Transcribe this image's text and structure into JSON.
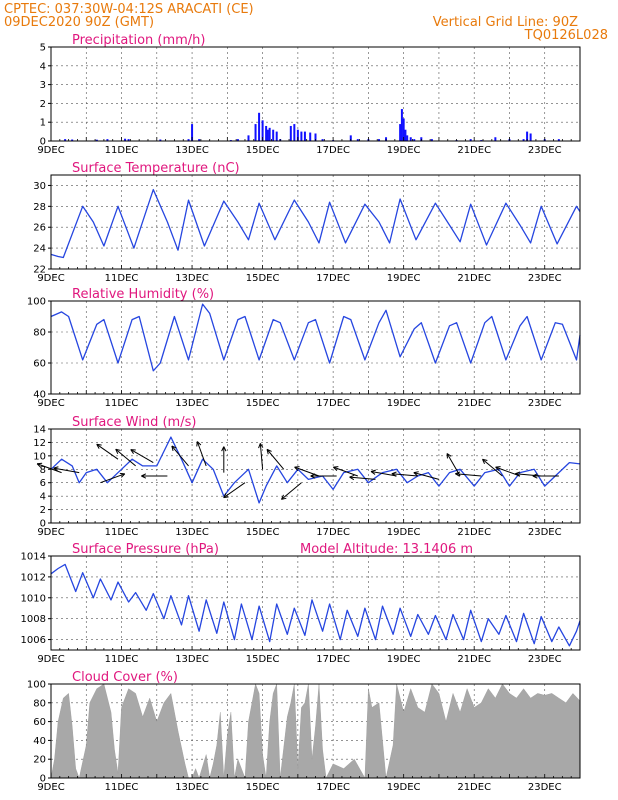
{
  "header": {
    "location": "CPTEC:   037:30W-04:12S   ARACATI (CE)",
    "run": "09DEC2020 90Z (GMT)",
    "grid_note": "Vertical Grid Line: 90Z",
    "code": "TQ0126L028"
  },
  "colors": {
    "header": "#e87a0c",
    "title": "#e0177e",
    "line": "#2646e0",
    "bar": "#1010ff",
    "cloud": "#a8a8a8"
  },
  "x_axis": {
    "start_day": 9,
    "end_day": 24,
    "labels": [
      {
        "day": 9,
        "text": "9DEC"
      },
      {
        "day": 11,
        "text": "11DEC"
      },
      {
        "day": 13,
        "text": "13DEC"
      },
      {
        "day": 15,
        "text": "15DEC"
      },
      {
        "day": 17,
        "text": "17DEC"
      },
      {
        "day": 19,
        "text": "19DEC"
      },
      {
        "day": 21,
        "text": "21DEC"
      },
      {
        "day": 23,
        "text": "23DEC"
      }
    ]
  },
  "chart_data": [
    {
      "type": "bar",
      "title": "Precipitation (mm/h)",
      "ylim": [
        0,
        5
      ],
      "yticks": [
        "0",
        "1",
        "2",
        "3",
        "4",
        "5"
      ],
      "x": [
        9.4,
        9.6,
        10.3,
        10.6,
        11.1,
        11.2,
        12.1,
        12.9,
        13.0,
        13.2,
        14.1,
        14.3,
        14.6,
        14.8,
        14.9,
        15.0,
        15.1,
        15.15,
        15.2,
        15.3,
        15.4,
        15.5,
        15.8,
        15.9,
        16.0,
        16.1,
        16.2,
        16.35,
        16.5,
        16.7,
        17.0,
        17.5,
        17.7,
        18.0,
        18.3,
        18.5,
        18.9,
        18.95,
        19.0,
        19.05,
        19.1,
        19.2,
        19.3,
        19.5,
        19.8,
        20.5,
        20.9,
        21.2,
        21.6,
        22.0,
        22.4,
        22.5,
        22.6,
        23.0,
        23.4
      ],
      "values": [
        0.1,
        0.08,
        0.07,
        0.1,
        0.12,
        0.1,
        0.08,
        0.1,
        0.9,
        0.1,
        0.05,
        0.1,
        0.3,
        0.9,
        1.5,
        1.1,
        0.8,
        0.6,
        0.7,
        0.6,
        0.5,
        0.1,
        0.8,
        0.9,
        0.6,
        0.5,
        0.5,
        0.45,
        0.4,
        0.1,
        0.05,
        0.3,
        0.1,
        0.1,
        0.1,
        0.2,
        0.9,
        1.7,
        1.2,
        0.6,
        0.3,
        0.2,
        0.1,
        0.2,
        0.1,
        0.05,
        0.1,
        0.05,
        0.2,
        0.1,
        0.1,
        0.5,
        0.4,
        0.1,
        0.1
      ]
    },
    {
      "type": "line",
      "title": "Surface Temperature (nC)",
      "ylim": [
        22,
        31
      ],
      "yticks": [
        "22",
        "24",
        "26",
        "28",
        "30"
      ],
      "x": [
        9.0,
        9.2,
        9.35,
        9.9,
        10.2,
        10.5,
        10.9,
        11.35,
        11.9,
        12.3,
        12.6,
        12.9,
        13.35,
        13.9,
        14.3,
        14.6,
        14.9,
        15.35,
        15.9,
        16.3,
        16.6,
        16.9,
        17.35,
        17.9,
        18.3,
        18.6,
        18.9,
        19.35,
        19.9,
        20.3,
        20.6,
        20.9,
        21.35,
        21.9,
        22.3,
        22.6,
        22.9,
        23.35,
        23.9,
        24.0
      ],
      "values": [
        23.4,
        23.2,
        23.1,
        28.0,
        26.5,
        24.2,
        28.0,
        24.0,
        29.6,
        26.5,
        23.8,
        28.6,
        24.2,
        28.5,
        26.5,
        24.8,
        28.3,
        24.8,
        28.6,
        26.5,
        24.5,
        28.4,
        24.5,
        28.2,
        26.5,
        24.5,
        28.7,
        24.8,
        28.3,
        26.2,
        24.6,
        28.2,
        24.3,
        28.3,
        26.2,
        24.5,
        28.0,
        24.4,
        28.0,
        27.5
      ]
    },
    {
      "type": "line",
      "title": "Relative Humidity (%)",
      "ylim": [
        40,
        100
      ],
      "yticks": [
        "40",
        "60",
        "80",
        "100"
      ],
      "x": [
        9.0,
        9.3,
        9.5,
        9.9,
        10.3,
        10.5,
        10.9,
        11.3,
        11.5,
        11.9,
        12.1,
        12.5,
        12.9,
        13.3,
        13.5,
        13.9,
        14.3,
        14.5,
        14.9,
        15.3,
        15.5,
        15.9,
        16.3,
        16.5,
        16.9,
        17.3,
        17.5,
        17.9,
        18.3,
        18.5,
        18.9,
        19.3,
        19.5,
        19.9,
        20.3,
        20.5,
        20.9,
        21.3,
        21.5,
        21.9,
        22.3,
        22.5,
        22.9,
        23.3,
        23.5,
        23.9,
        24.0
      ],
      "values": [
        90,
        93,
        90,
        62,
        85,
        88,
        60,
        88,
        90,
        55,
        60,
        90,
        62,
        98,
        92,
        62,
        88,
        90,
        62,
        88,
        86,
        62,
        86,
        88,
        60,
        90,
        88,
        62,
        86,
        94,
        64,
        82,
        86,
        60,
        84,
        86,
        60,
        86,
        90,
        62,
        84,
        90,
        62,
        86,
        85,
        62,
        78
      ]
    },
    {
      "type": "line",
      "title": "Surface Wind (m/s)",
      "ylim": [
        0,
        14
      ],
      "yticks": [
        "0",
        "2",
        "4",
        "6",
        "8",
        "10",
        "12",
        "14"
      ],
      "x": [
        9.0,
        9.3,
        9.6,
        9.8,
        10.0,
        10.3,
        10.6,
        11.0,
        11.3,
        11.6,
        12.0,
        12.4,
        12.7,
        13.0,
        13.3,
        13.6,
        13.9,
        14.2,
        14.6,
        14.9,
        15.1,
        15.4,
        15.7,
        16.0,
        16.3,
        16.7,
        17.0,
        17.3,
        17.7,
        18.0,
        18.4,
        18.8,
        19.1,
        19.4,
        19.7,
        20.0,
        20.3,
        20.6,
        21.0,
        21.3,
        21.7,
        22.0,
        22.3,
        22.7,
        23.0,
        23.3,
        23.7,
        24.0
      ],
      "values": [
        8.0,
        9.5,
        8.5,
        6.0,
        7.5,
        8.0,
        6.0,
        8.0,
        9.5,
        8.5,
        8.5,
        12.8,
        9.5,
        6.0,
        9.5,
        8.0,
        4.0,
        6.0,
        8.0,
        3.0,
        5.5,
        8.5,
        6.0,
        8.0,
        6.5,
        7.0,
        5.0,
        7.5,
        8.0,
        6.0,
        7.5,
        8.0,
        6.0,
        7.0,
        7.5,
        5.5,
        7.5,
        8.0,
        5.5,
        7.5,
        8.0,
        5.5,
        7.5,
        8.0,
        5.5,
        7.0,
        9.0,
        8.8
      ]
    },
    {
      "type": "line",
      "title": "Surface Pressure (hPa)",
      "subtitle": "Model Altitude: 13.1406 m",
      "ylim": [
        1005,
        1014
      ],
      "yticks": [
        "1006",
        "1008",
        "1010",
        "1012",
        "1014"
      ],
      "x": [
        9.0,
        9.2,
        9.4,
        9.7,
        9.9,
        10.2,
        10.4,
        10.7,
        10.9,
        11.2,
        11.4,
        11.7,
        11.9,
        12.2,
        12.4,
        12.7,
        12.9,
        13.2,
        13.4,
        13.7,
        13.9,
        14.2,
        14.4,
        14.7,
        14.9,
        15.2,
        15.4,
        15.7,
        15.9,
        16.2,
        16.4,
        16.7,
        16.9,
        17.2,
        17.4,
        17.7,
        17.9,
        18.2,
        18.4,
        18.7,
        18.9,
        19.2,
        19.4,
        19.7,
        19.9,
        20.2,
        20.4,
        20.7,
        20.9,
        21.2,
        21.4,
        21.7,
        21.9,
        22.2,
        22.4,
        22.7,
        22.9,
        23.2,
        23.4,
        23.7,
        23.9,
        24.0
      ],
      "values": [
        1012.3,
        1012.8,
        1013.2,
        1010.6,
        1012.4,
        1010.0,
        1011.8,
        1009.8,
        1011.5,
        1009.6,
        1010.5,
        1008.8,
        1010.4,
        1008.0,
        1010.2,
        1007.4,
        1010.2,
        1006.8,
        1009.8,
        1006.6,
        1009.6,
        1006.0,
        1009.4,
        1006.0,
        1009.2,
        1005.8,
        1009.4,
        1006.5,
        1009.0,
        1006.4,
        1009.8,
        1006.8,
        1009.4,
        1006.0,
        1008.8,
        1006.3,
        1009.0,
        1006.0,
        1009.2,
        1006.5,
        1009.0,
        1006.3,
        1008.4,
        1006.5,
        1008.3,
        1006.0,
        1008.4,
        1006.0,
        1008.8,
        1005.8,
        1008.0,
        1006.5,
        1008.3,
        1005.8,
        1008.5,
        1005.6,
        1008.2,
        1005.8,
        1007.2,
        1005.4,
        1006.8,
        1007.8
      ]
    },
    {
      "type": "area",
      "title": "Cloud Cover (%)",
      "ylim": [
        0,
        100
      ],
      "yticks": [
        "0",
        "20",
        "40",
        "60",
        "80",
        "100"
      ],
      "x": [
        9.0,
        9.1,
        9.2,
        9.35,
        9.5,
        9.6,
        9.7,
        9.8,
        10.0,
        10.1,
        10.3,
        10.5,
        10.7,
        10.8,
        10.9,
        11.0,
        11.2,
        11.4,
        11.6,
        11.8,
        12.0,
        12.2,
        12.4,
        12.6,
        12.8,
        12.9,
        13.0,
        13.1,
        13.2,
        13.4,
        13.5,
        13.6,
        13.7,
        13.8,
        13.9,
        14.0,
        14.1,
        14.2,
        14.3,
        14.5,
        14.6,
        14.8,
        14.9,
        15.0,
        15.1,
        15.2,
        15.3,
        15.4,
        15.5,
        15.7,
        15.8,
        15.9,
        16.0,
        16.1,
        16.2,
        16.3,
        16.4,
        16.5,
        16.6,
        16.7,
        16.8,
        17.0,
        17.3,
        17.6,
        17.9,
        18.0,
        18.1,
        18.3,
        18.5,
        18.7,
        18.8,
        19.0,
        19.2,
        19.4,
        19.6,
        19.8,
        20.0,
        20.2,
        20.4,
        20.6,
        20.8,
        21.0,
        21.2,
        21.4,
        21.6,
        21.8,
        22.0,
        22.2,
        22.4,
        22.6,
        22.8,
        23.0,
        23.2,
        23.4,
        23.6,
        23.8,
        24.0
      ],
      "values": [
        0,
        20,
        60,
        85,
        90,
        55,
        10,
        0,
        35,
        80,
        95,
        100,
        70,
        30,
        5,
        75,
        95,
        90,
        65,
        85,
        60,
        80,
        90,
        50,
        15,
        0,
        0,
        10,
        0,
        25,
        0,
        15,
        35,
        70,
        0,
        45,
        70,
        0,
        20,
        0,
        60,
        100,
        90,
        25,
        0,
        60,
        90,
        100,
        0,
        65,
        80,
        100,
        10,
        75,
        80,
        100,
        20,
        55,
        100,
        30,
        0,
        15,
        10,
        20,
        0,
        95,
        75,
        80,
        0,
        35,
        100,
        70,
        95,
        75,
        70,
        100,
        90,
        60,
        90,
        70,
        95,
        75,
        80,
        95,
        85,
        100,
        90,
        85,
        95,
        85,
        90,
        88,
        90,
        85,
        80,
        90,
        82
      ]
    }
  ],
  "wind_vectors": [
    {
      "day": 9.3,
      "speed": 7.5,
      "dir_deg": 160
    },
    {
      "day": 9.8,
      "speed": 7.5,
      "dir_deg": 170
    },
    {
      "day": 10.4,
      "speed": 6.0,
      "dir_deg": 20
    },
    {
      "day": 10.9,
      "speed": 9.5,
      "dir_deg": 145
    },
    {
      "day": 11.4,
      "speed": 8.5,
      "dir_deg": 140
    },
    {
      "day": 11.9,
      "speed": 9.0,
      "dir_deg": 150
    },
    {
      "day": 12.3,
      "speed": 7.0,
      "dir_deg": 180
    },
    {
      "day": 12.9,
      "speed": 8.5,
      "dir_deg": 130
    },
    {
      "day": 13.4,
      "speed": 8.5,
      "dir_deg": 110
    },
    {
      "day": 13.9,
      "speed": 7.5,
      "dir_deg": 90
    },
    {
      "day": 14.5,
      "speed": 6.0,
      "dir_deg": 215
    },
    {
      "day": 15.0,
      "speed": 8.0,
      "dir_deg": 95
    },
    {
      "day": 15.6,
      "speed": 8.0,
      "dir_deg": 130
    },
    {
      "day": 16.1,
      "speed": 6.0,
      "dir_deg": 220
    },
    {
      "day": 16.6,
      "speed": 7.0,
      "dir_deg": 160
    },
    {
      "day": 17.1,
      "speed": 7.0,
      "dir_deg": 180
    },
    {
      "day": 17.7,
      "speed": 7.0,
      "dir_deg": 160
    },
    {
      "day": 18.2,
      "speed": 6.5,
      "dir_deg": 175
    },
    {
      "day": 18.8,
      "speed": 7.0,
      "dir_deg": 170
    },
    {
      "day": 19.4,
      "speed": 7.0,
      "dir_deg": 175
    },
    {
      "day": 20.0,
      "speed": 6.5,
      "dir_deg": 165
    },
    {
      "day": 20.6,
      "speed": 7.0,
      "dir_deg": 120
    },
    {
      "day": 21.2,
      "speed": 7.0,
      "dir_deg": 175
    },
    {
      "day": 21.8,
      "speed": 7.0,
      "dir_deg": 140
    },
    {
      "day": 22.3,
      "speed": 7.0,
      "dir_deg": 160
    },
    {
      "day": 22.9,
      "speed": 7.0,
      "dir_deg": 175
    },
    {
      "day": 23.4,
      "speed": 7.0,
      "dir_deg": 180
    }
  ]
}
